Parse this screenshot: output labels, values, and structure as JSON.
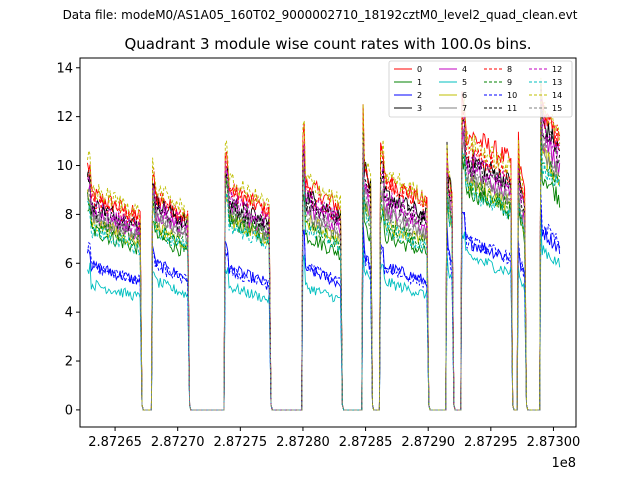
{
  "figure": {
    "suptitle": "Data file: modeM0/AS1A05_160T02_9000002710_18192cztM0_level2_quad_clean.evt"
  },
  "chart_data": {
    "type": "line",
    "title": "Quadrant 3 module wise count rates with 100.0s bins.",
    "xlabel": "",
    "ylabel": "",
    "offset_label": "1e8",
    "xlim": [
      287262200,
      287301800
    ],
    "ylim": [
      -0.7,
      14.4
    ],
    "x_ticks": [
      287265000,
      287270000,
      287275000,
      287280000,
      287285000,
      287290000,
      287295000,
      287300000
    ],
    "x_tick_labels": [
      "2.87265",
      "2.87270",
      "2.87275",
      "2.87280",
      "2.87285",
      "2.87290",
      "2.87295",
      "2.87300"
    ],
    "y_ticks": [
      0,
      2,
      4,
      6,
      8,
      10,
      12,
      14
    ],
    "y_tick_labels": [
      "0",
      "2",
      "4",
      "6",
      "8",
      "10",
      "12",
      "14"
    ],
    "grid": false,
    "legend": {
      "placement": "top-right",
      "columns": 4
    },
    "segments": [
      {
        "start": 287262800,
        "end": 287267000,
        "gap_end": 287268000,
        "edge_spike": 1.12
      },
      {
        "start": 287268000,
        "end": 287270800,
        "gap_end": 287273800,
        "edge_spike": 1.1
      },
      {
        "start": 287273800,
        "end": 287277300,
        "gap_end": 287280000,
        "edge_spike": 1.14
      },
      {
        "start": 287280000,
        "end": 287283000,
        "gap_end": 287284800,
        "edge_spike": 1.22
      },
      {
        "start": 287284800,
        "end": 287285400,
        "gap_end": 287286200,
        "edge_spike": 1.18
      },
      {
        "start": 287286200,
        "end": 287289900,
        "gap_end": 287291500,
        "edge_spike": 1.1
      },
      {
        "start": 287291500,
        "end": 287291900,
        "gap_end": 287292700,
        "edge_spike": 1.1
      },
      {
        "start": 287292700,
        "end": 287296600,
        "gap_end": 287297200,
        "edge_spike": 1.12
      },
      {
        "start": 287297200,
        "end": 287297700,
        "gap_end": 287299000,
        "edge_spike": 1.08
      },
      {
        "start": 287299000,
        "end": 287300500,
        "gap_end": 287300500,
        "edge_spike": 1.12
      }
    ],
    "series": [
      {
        "name": "0",
        "color": "#ff0000",
        "dash": "solid",
        "levels": [
          8.4,
          8.3,
          8.6,
          8.8,
          9.8,
          9.0,
          9.3,
          10.8,
          9.6,
          11.6
        ]
      },
      {
        "name": "1",
        "color": "#008000",
        "dash": "solid",
        "levels": [
          7.0,
          6.8,
          7.4,
          6.8,
          7.5,
          6.8,
          7.6,
          8.6,
          7.5,
          9.2
        ]
      },
      {
        "name": "2",
        "color": "#0000ff",
        "dash": "solid",
        "levels": [
          5.6,
          5.7,
          5.5,
          5.5,
          6.2,
          5.6,
          6.3,
          6.6,
          5.8,
          7.0
        ]
      },
      {
        "name": "3",
        "color": "#000000",
        "dash": "solid",
        "levels": [
          8.0,
          8.1,
          8.1,
          8.4,
          9.6,
          8.4,
          9.3,
          9.9,
          8.9,
          11.2
        ]
      },
      {
        "name": "4",
        "color": "#c000c0",
        "dash": "solid",
        "levels": [
          7.6,
          7.7,
          7.8,
          7.9,
          8.6,
          7.9,
          8.8,
          9.4,
          8.2,
          10.6
        ]
      },
      {
        "name": "5",
        "color": "#00bfbf",
        "dash": "solid",
        "levels": [
          4.9,
          5.0,
          4.8,
          4.8,
          5.5,
          5.0,
          5.6,
          6.0,
          5.2,
          6.3
        ]
      },
      {
        "name": "6",
        "color": "#bfbf00",
        "dash": "solid",
        "levels": [
          7.3,
          7.2,
          7.4,
          7.4,
          8.2,
          7.3,
          8.1,
          8.9,
          7.8,
          10.0
        ]
      },
      {
        "name": "7",
        "color": "#808080",
        "dash": "solid",
        "levels": [
          7.5,
          7.5,
          7.6,
          7.6,
          8.4,
          7.6,
          8.4,
          9.1,
          8.0,
          10.2
        ]
      },
      {
        "name": "8",
        "color": "#ff0000",
        "dash": "dashed",
        "levels": [
          8.2,
          8.3,
          8.6,
          8.4,
          9.6,
          8.9,
          9.1,
          10.1,
          9.3,
          11.7
        ]
      },
      {
        "name": "9",
        "color": "#008000",
        "dash": "dashed",
        "levels": [
          7.3,
          7.1,
          7.6,
          7.2,
          8.0,
          7.2,
          8.0,
          8.8,
          7.9,
          9.8
        ]
      },
      {
        "name": "10",
        "color": "#0000ff",
        "dash": "dashed",
        "levels": [
          5.6,
          5.6,
          5.4,
          5.6,
          6.0,
          5.5,
          6.1,
          6.6,
          5.9,
          7.2
        ]
      },
      {
        "name": "11",
        "color": "#000000",
        "dash": "dashed",
        "levels": [
          7.8,
          7.9,
          8.0,
          8.1,
          9.2,
          8.2,
          8.9,
          9.6,
          8.6,
          11.0
        ]
      },
      {
        "name": "12",
        "color": "#c000c0",
        "dash": "dashed",
        "levels": [
          7.9,
          8.0,
          8.2,
          8.3,
          9.0,
          8.3,
          8.9,
          9.8,
          8.6,
          11.1
        ]
      },
      {
        "name": "13",
        "color": "#00bfbf",
        "dash": "dashed",
        "levels": [
          7.0,
          7.0,
          7.2,
          7.1,
          7.9,
          7.1,
          7.8,
          8.6,
          7.6,
          9.6
        ]
      },
      {
        "name": "14",
        "color": "#bfbf00",
        "dash": "dashed",
        "levels": [
          8.6,
          8.6,
          8.9,
          9.0,
          9.9,
          9.2,
          9.4,
          10.5,
          9.5,
          11.8
        ]
      },
      {
        "name": "15",
        "color": "#808080",
        "dash": "dashed",
        "levels": [
          7.6,
          7.6,
          7.8,
          7.7,
          8.5,
          7.7,
          8.5,
          9.3,
          8.1,
          10.4
        ]
      }
    ]
  }
}
